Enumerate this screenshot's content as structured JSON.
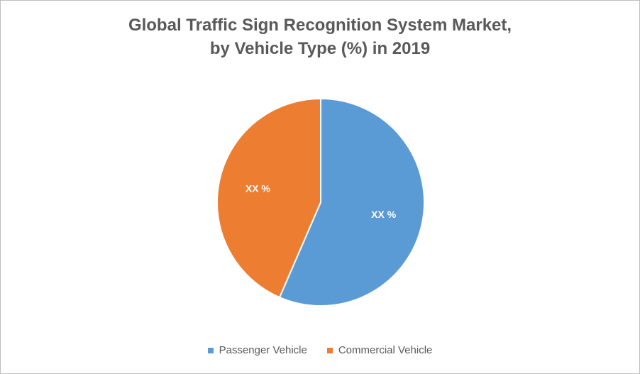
{
  "chart_data": {
    "type": "pie",
    "title_lines": [
      "Global Traffic Sign Recognition System Market,",
      "by Vehicle Type (%) in 2019"
    ],
    "slices": [
      {
        "name": "Passenger Vehicle",
        "value": 56.5,
        "label": "XX %",
        "color": "#5b9bd5"
      },
      {
        "name": "Commercial Vehicle",
        "value": 43.5,
        "label": "XX %",
        "color": "#ed7d31"
      }
    ],
    "legend_position": "bottom"
  }
}
